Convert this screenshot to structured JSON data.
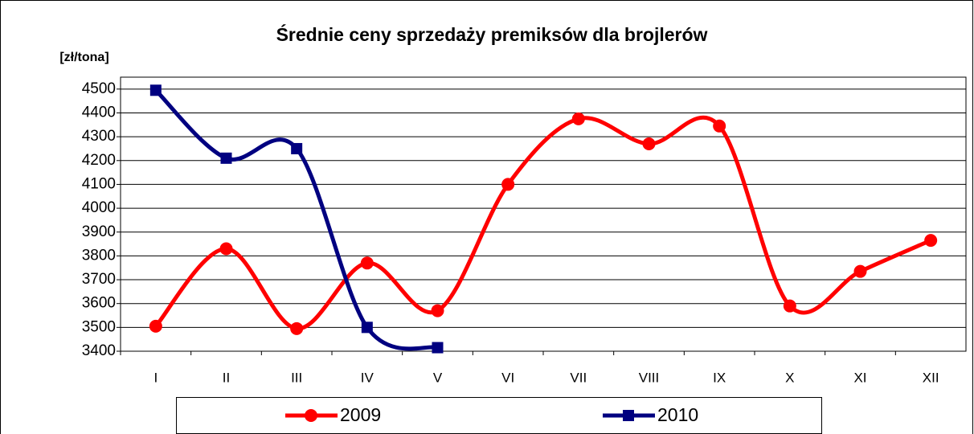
{
  "chart_data": {
    "type": "line",
    "title": "Średnie ceny sprzedaży premiksów dla brojlerów",
    "y_label": "[zł/tona]",
    "categories": [
      "I",
      "II",
      "III",
      "IV",
      "V",
      "VI",
      "VII",
      "VIII",
      "IX",
      "X",
      "XI",
      "XII"
    ],
    "series": [
      {
        "name": "2009",
        "color": "#ff0000",
        "marker": "circle",
        "values": [
          3505,
          3830,
          3495,
          3770,
          3570,
          4100,
          4375,
          4270,
          4345,
          3590,
          3735,
          3865
        ]
      },
      {
        "name": "2010",
        "color": "#000080",
        "marker": "square",
        "values": [
          4495,
          4210,
          4250,
          3500,
          3415,
          null,
          null,
          null,
          null,
          null,
          null,
          null
        ]
      }
    ],
    "ylim": [
      3400,
      4550
    ],
    "yticks": [
      3400,
      3500,
      3600,
      3700,
      3800,
      3900,
      4000,
      4100,
      4200,
      4300,
      4400,
      4500
    ],
    "grid": true,
    "smooth": true,
    "legend": "bottom"
  }
}
